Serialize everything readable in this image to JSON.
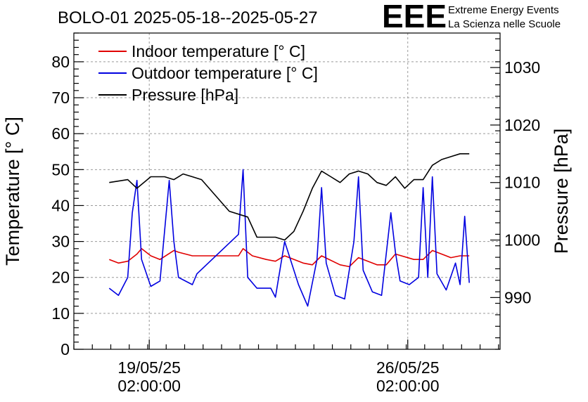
{
  "header": {
    "title": "BOLO-01 2025-05-18--2025-05-27",
    "logo_text": "EEE",
    "project_line1": "Extreme Energy Events",
    "project_line2": "La Scienza nelle Scuole"
  },
  "colors": {
    "indoor": "#e00000",
    "outdoor": "#0000e0",
    "pressure": "#000000",
    "logo": "#1818e8",
    "grid": "#9a9a9a"
  },
  "chart_data": {
    "type": "line",
    "title": "BOLO-01 2025-05-18--2025-05-27",
    "ylabel": "Temperature [° C]",
    "y2label": "Pressure [hPa]",
    "ylim": [
      0,
      88
    ],
    "y2lim": [
      981,
      1036
    ],
    "xlim": [
      "2025-05-17 01:00",
      "2025-05-28 14:00"
    ],
    "yticks": [
      0,
      10,
      20,
      30,
      40,
      50,
      60,
      70,
      80
    ],
    "y2ticks": [
      990,
      1000,
      1010,
      1020,
      1030
    ],
    "xticks": [
      {
        "x": "2025-05-19 02:00",
        "label1": "19/05/25",
        "label2": "02:00:00"
      },
      {
        "x": "2025-05-26 02:00",
        "label1": "26/05/25",
        "label2": "02:00:00"
      }
    ],
    "grid": true,
    "legend_position": "top-left",
    "series": [
      {
        "name": "Indoor temperature [° C]",
        "axis": "left",
        "x": [
          "2025-05-18 00:00",
          "2025-05-18 06:00",
          "2025-05-18 12:00",
          "2025-05-18 18:00",
          "2025-05-18 21:00",
          "2025-05-19 03:00",
          "2025-05-19 09:00",
          "2025-05-19 18:00",
          "2025-05-19 21:00",
          "2025-05-20 06:00",
          "2025-05-20 12:00",
          "2025-05-21 06:00",
          "2025-05-21 12:00",
          "2025-05-21 15:00",
          "2025-05-21 21:00",
          "2025-05-22 06:00",
          "2025-05-22 12:00",
          "2025-05-22 18:00",
          "2025-05-23 06:00",
          "2025-05-23 12:00",
          "2025-05-23 18:00",
          "2025-05-24 06:00",
          "2025-05-24 12:00",
          "2025-05-24 18:00",
          "2025-05-25 06:00",
          "2025-05-25 12:00",
          "2025-05-25 18:00",
          "2025-05-26 06:00",
          "2025-05-26 12:00",
          "2025-05-26 18:00",
          "2025-05-27 00:00",
          "2025-05-27 06:00",
          "2025-05-27 12:00",
          "2025-05-27 18:00"
        ],
        "y": [
          25,
          24,
          24.5,
          26.5,
          28,
          26,
          25,
          27.5,
          27,
          26,
          26,
          26,
          26,
          28,
          26,
          25,
          24.5,
          26,
          24,
          23.5,
          26,
          23.5,
          23,
          25.5,
          23.5,
          23.5,
          26.5,
          25,
          25,
          27.5,
          26.5,
          25.5,
          26,
          26
        ]
      },
      {
        "name": "Outdoor temperature [° C]",
        "axis": "left",
        "x": [
          "2025-05-18 00:00",
          "2025-05-18 06:00",
          "2025-05-18 12:00",
          "2025-05-18 15:00",
          "2025-05-18 18:00",
          "2025-05-18 21:00",
          "2025-05-19 03:00",
          "2025-05-19 09:00",
          "2025-05-19 15:00",
          "2025-05-19 18:00",
          "2025-05-19 21:00",
          "2025-05-20 06:00",
          "2025-05-20 09:00",
          "2025-05-21 12:00",
          "2025-05-21 15:00",
          "2025-05-21 18:00",
          "2025-05-22 00:00",
          "2025-05-22 09:00",
          "2025-05-22 12:00",
          "2025-05-22 18:00",
          "2025-05-23 03:00",
          "2025-05-23 09:00",
          "2025-05-23 15:00",
          "2025-05-23 18:00",
          "2025-05-23 21:00",
          "2025-05-24 03:00",
          "2025-05-24 09:00",
          "2025-05-24 15:00",
          "2025-05-24 18:00",
          "2025-05-24 21:00",
          "2025-05-25 03:00",
          "2025-05-25 09:00",
          "2025-05-25 15:00",
          "2025-05-25 18:00",
          "2025-05-25 21:00",
          "2025-05-26 03:00",
          "2025-05-26 09:00",
          "2025-05-26 12:00",
          "2025-05-26 15:00",
          "2025-05-26 18:00",
          "2025-05-26 21:00",
          "2025-05-27 03:00",
          "2025-05-27 09:00",
          "2025-05-27 12:00",
          "2025-05-27 15:00",
          "2025-05-27 18:00"
        ],
        "y": [
          17,
          15,
          20,
          38,
          47,
          25,
          17.5,
          19,
          47,
          30,
          20,
          18,
          21,
          32,
          50,
          20,
          17,
          17,
          14.5,
          30,
          18,
          12,
          25,
          45,
          24,
          15,
          14,
          30,
          48,
          22,
          16,
          15,
          38,
          27,
          19,
          18,
          20,
          45,
          20,
          48,
          21,
          16.5,
          24,
          18,
          37,
          18.5
        ]
      },
      {
        "name": "Pressure [hPa]",
        "axis": "right",
        "x": [
          "2025-05-18 00:00",
          "2025-05-18 12:00",
          "2025-05-18 18:00",
          "2025-05-19 03:00",
          "2025-05-19 12:00",
          "2025-05-19 18:00",
          "2025-05-20 00:00",
          "2025-05-20 06:00",
          "2025-05-20 12:00",
          "2025-05-21 06:00",
          "2025-05-21 18:00",
          "2025-05-22 00:00",
          "2025-05-22 12:00",
          "2025-05-22 18:00",
          "2025-05-23 00:00",
          "2025-05-23 06:00",
          "2025-05-23 12:00",
          "2025-05-23 18:00",
          "2025-05-24 00:00",
          "2025-05-24 06:00",
          "2025-05-24 12:00",
          "2025-05-24 18:00",
          "2025-05-25 00:00",
          "2025-05-25 06:00",
          "2025-05-25 12:00",
          "2025-05-25 18:00",
          "2025-05-26 00:00",
          "2025-05-26 06:00",
          "2025-05-26 12:00",
          "2025-05-26 18:00",
          "2025-05-27 00:00",
          "2025-05-27 06:00",
          "2025-05-27 12:00",
          "2025-05-27 18:00"
        ],
        "y": [
          1010,
          1010.5,
          1009,
          1011,
          1011,
          1010.5,
          1011.5,
          1011,
          1010.5,
          1005,
          1004,
          1000.5,
          1000.5,
          1000,
          1001.5,
          1005,
          1009,
          1012,
          1011,
          1010,
          1011.5,
          1012,
          1011.5,
          1010,
          1009.5,
          1011,
          1009,
          1010.5,
          1010.5,
          1013,
          1014,
          1014.5,
          1015,
          1015
        ]
      }
    ]
  }
}
